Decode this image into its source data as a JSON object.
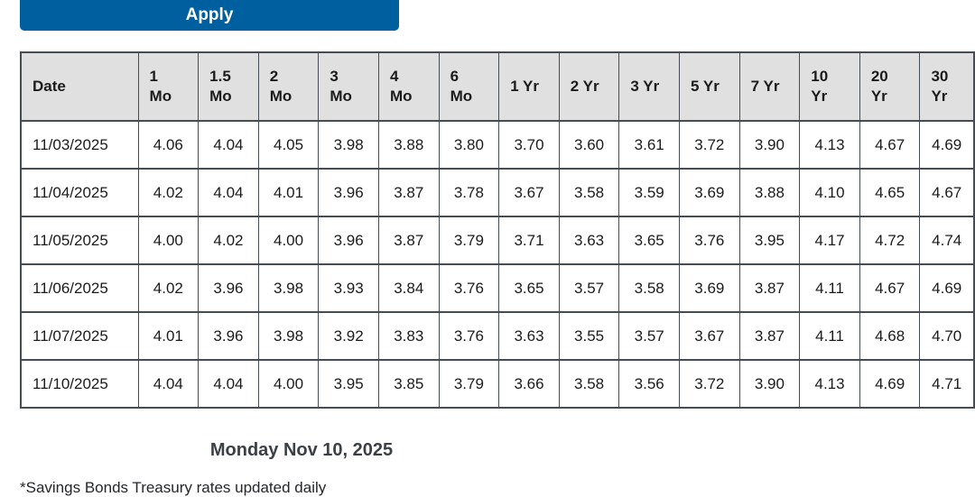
{
  "toolbar": {
    "apply_label": "Apply"
  },
  "table": {
    "columns": [
      "Date",
      "1\nMo",
      "1.5\nMo",
      "2\nMo",
      "3\nMo",
      "4\nMo",
      "6\nMo",
      "1 Yr",
      "2 Yr",
      "3 Yr",
      "5 Yr",
      "7 Yr",
      "10\nYr",
      "20\nYr",
      "30\nYr"
    ],
    "rows": [
      [
        "11/03/2025",
        "4.06",
        "4.04",
        "4.05",
        "3.98",
        "3.88",
        "3.80",
        "3.70",
        "3.60",
        "3.61",
        "3.72",
        "3.90",
        "4.13",
        "4.67",
        "4.69"
      ],
      [
        "11/04/2025",
        "4.02",
        "4.04",
        "4.01",
        "3.96",
        "3.87",
        "3.78",
        "3.67",
        "3.58",
        "3.59",
        "3.69",
        "3.88",
        "4.10",
        "4.65",
        "4.67"
      ],
      [
        "11/05/2025",
        "4.00",
        "4.02",
        "4.00",
        "3.96",
        "3.87",
        "3.79",
        "3.71",
        "3.63",
        "3.65",
        "3.76",
        "3.95",
        "4.17",
        "4.72",
        "4.74"
      ],
      [
        "11/06/2025",
        "4.02",
        "3.96",
        "3.98",
        "3.93",
        "3.84",
        "3.76",
        "3.65",
        "3.57",
        "3.58",
        "3.69",
        "3.87",
        "4.11",
        "4.67",
        "4.69"
      ],
      [
        "11/07/2025",
        "4.01",
        "3.96",
        "3.98",
        "3.92",
        "3.83",
        "3.76",
        "3.63",
        "3.55",
        "3.57",
        "3.67",
        "3.87",
        "4.11",
        "4.68",
        "4.70"
      ],
      [
        "11/10/2025",
        "4.04",
        "4.04",
        "4.00",
        "3.95",
        "3.85",
        "3.79",
        "3.66",
        "3.58",
        "3.56",
        "3.72",
        "3.90",
        "4.13",
        "4.69",
        "4.71"
      ]
    ]
  },
  "chart": {
    "date_title": "Monday Nov 10, 2025"
  },
  "footnote": {
    "text": "*Savings Bonds Treasury rates updated daily"
  },
  "colors": {
    "accent": "#005f9e",
    "header_bg": "#e0e0e0",
    "border": "#454c54",
    "text": "#1b1b1b"
  }
}
